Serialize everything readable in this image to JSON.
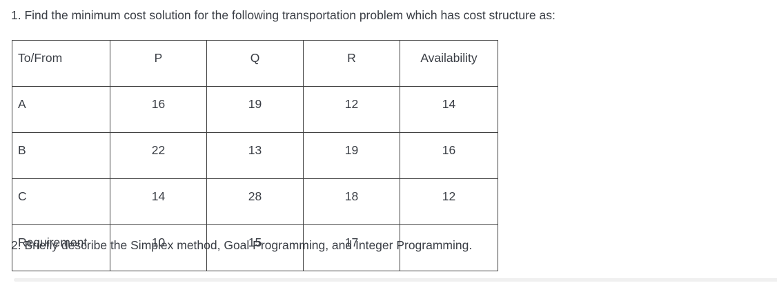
{
  "questions": {
    "q1": "1. Find the minimum cost solution for the following transportation problem which has cost structure as:",
    "q2": "2. Briefly describe the Simplex method, Goal Programming, and Integer Programming."
  },
  "table": {
    "columns": [
      "To/From",
      "P",
      "Q",
      "R",
      "Availability"
    ],
    "rows": [
      {
        "label": "A",
        "cells": [
          "16",
          "19",
          "12",
          "14"
        ]
      },
      {
        "label": "B",
        "cells": [
          "22",
          "13",
          "19",
          "16"
        ]
      },
      {
        "label": "C",
        "cells": [
          "14",
          "28",
          "18",
          "12"
        ]
      },
      {
        "label": "Requirement",
        "cells": [
          "10",
          "15",
          "17",
          ""
        ]
      }
    ]
  },
  "colors": {
    "text": "#3a3e45",
    "table_border": "#404040",
    "bottom_bar": "#f0f0f0",
    "background": "#ffffff"
  }
}
